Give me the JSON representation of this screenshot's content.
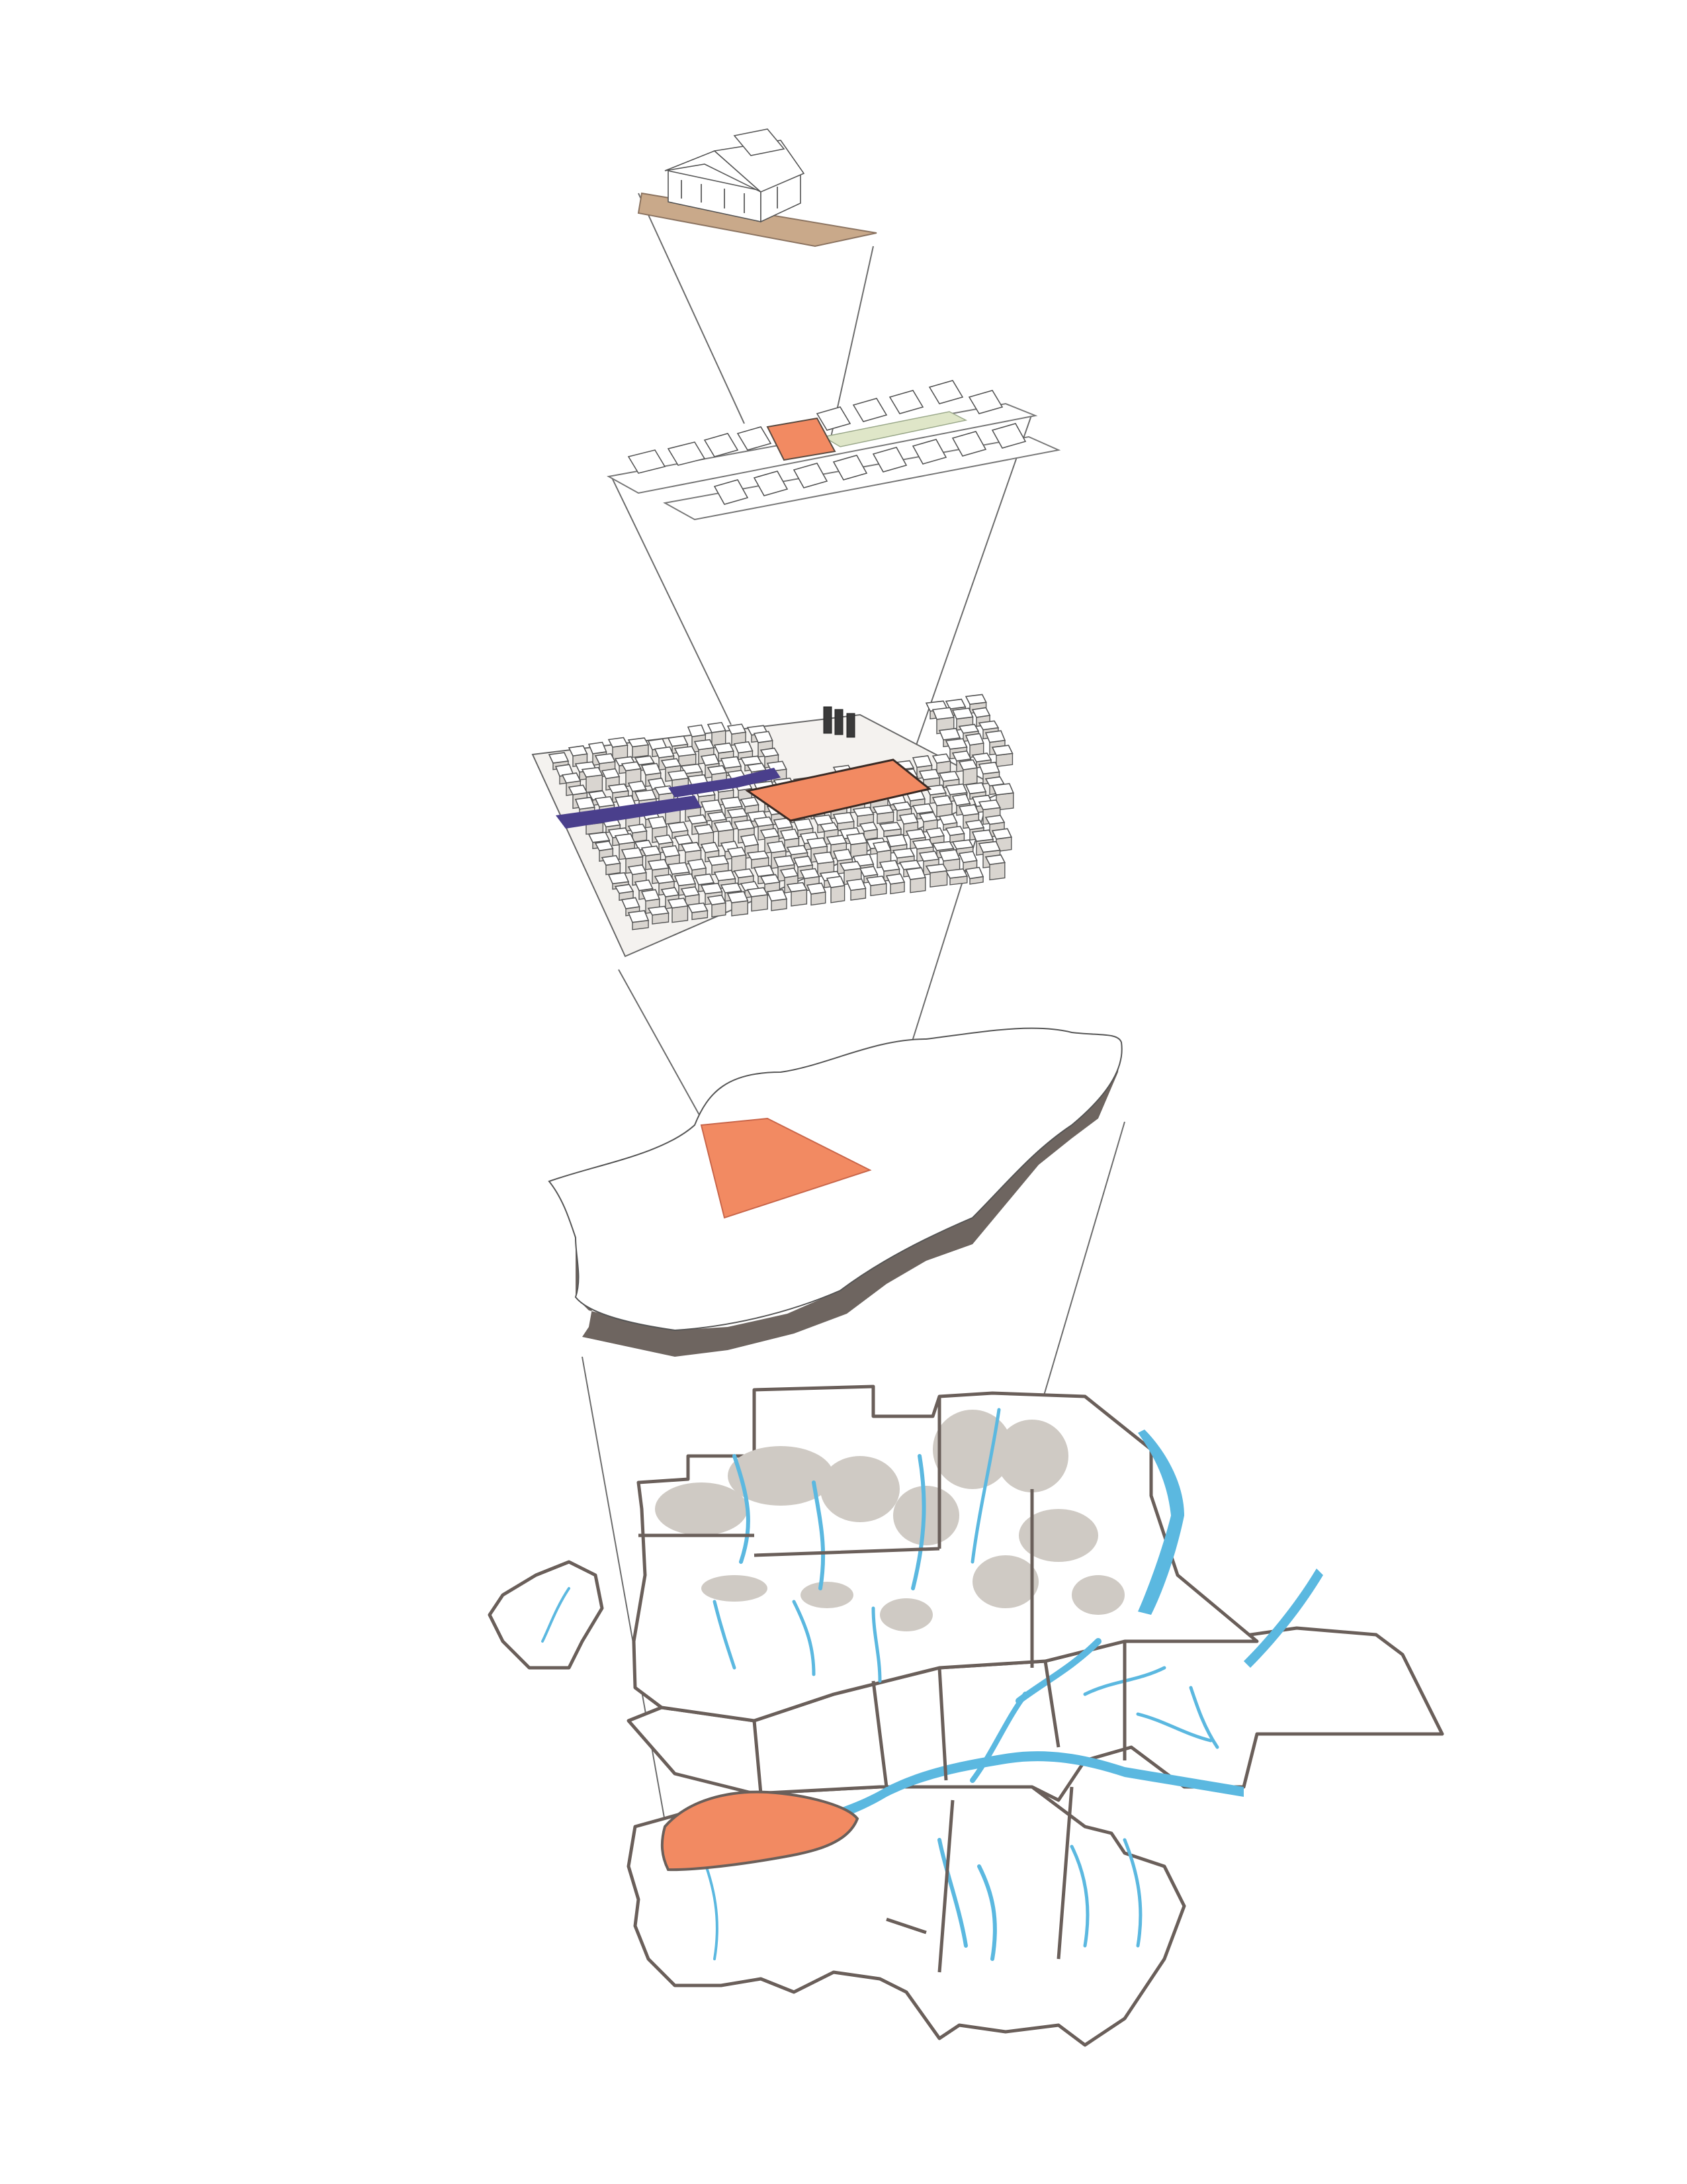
{
  "diagram": {
    "type": "exploded-scale-axonometric",
    "levels": [
      {
        "id": "house",
        "highlight_color": "#c9a98a"
      },
      {
        "id": "street-block",
        "highlight_color": "#f28a62",
        "secondary_color": "#dfe6c8"
      },
      {
        "id": "neighbourhood",
        "highlight_color": "#f28a62",
        "secondary_color": "#4a3f8c"
      },
      {
        "id": "municipality",
        "highlight_color": "#f28a62",
        "edge_color": "#6e6560"
      },
      {
        "id": "region",
        "highlight_color": "#f28a62",
        "water_color": "#5bb8e0",
        "terrain_color": "#cfcac4"
      }
    ]
  }
}
